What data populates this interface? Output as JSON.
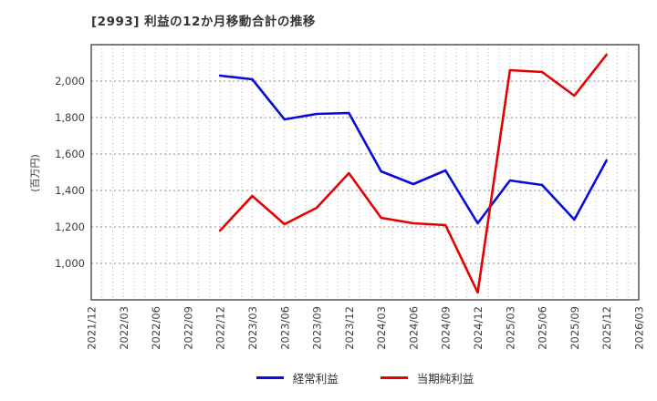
{
  "title": "[2993]  利益の12か月移動合計の推移",
  "chart_data": {
    "type": "line",
    "title": "[2993]  利益の12か月移動合計の推移",
    "xlabel": "",
    "ylabel": "(百万円)",
    "x_ticks": [
      "2021/12",
      "2022/03",
      "2022/06",
      "2022/09",
      "2022/12",
      "2023/03",
      "2023/06",
      "2023/09",
      "2023/12",
      "2024/03",
      "2024/06",
      "2024/09",
      "2024/12",
      "2025/03",
      "2025/06",
      "2025/09",
      "2025/12",
      "2026/03"
    ],
    "minor_gridlines_per_interval": 3,
    "y_tick_values": [
      1000,
      1200,
      1400,
      1600,
      1800,
      2000
    ],
    "y_tick_labels": [
      "1,000",
      "1,200",
      "1,400",
      "1,600",
      "1,800",
      "2,000"
    ],
    "ylim": [
      800,
      2200
    ],
    "grid": true,
    "legend_position": "bottom-center",
    "series": [
      {
        "name": "経常利益",
        "color": "#0a0ada",
        "start_tick": "2022/12",
        "x": [
          "2022/12",
          "2023/03",
          "2023/06",
          "2023/09",
          "2023/12",
          "2024/03",
          "2024/06",
          "2024/09",
          "2024/12",
          "2025/03",
          "2025/06",
          "2025/09",
          "2025/12"
        ],
        "values": [
          2030,
          2010,
          1790,
          1820,
          1825,
          1505,
          1435,
          1510,
          1220,
          1455,
          1430,
          1240,
          1565
        ]
      },
      {
        "name": "当期純利益",
        "color": "#e60000",
        "start_tick": "2022/12",
        "x": [
          "2022/12",
          "2023/03",
          "2023/06",
          "2023/09",
          "2023/12",
          "2024/03",
          "2024/06",
          "2024/09",
          "2024/12",
          "2025/03",
          "2025/06",
          "2025/09",
          "2025/12"
        ],
        "values": [
          1180,
          1370,
          1215,
          1305,
          1495,
          1250,
          1220,
          1210,
          840,
          2060,
          2050,
          1920,
          2145
        ]
      }
    ],
    "colors": {
      "grid_minor": "#b3b3b3",
      "grid_major": "#8f8f8f",
      "border": "#2b2b2b",
      "tick_text": "#3c3c3c",
      "background": "#ffffff"
    }
  }
}
